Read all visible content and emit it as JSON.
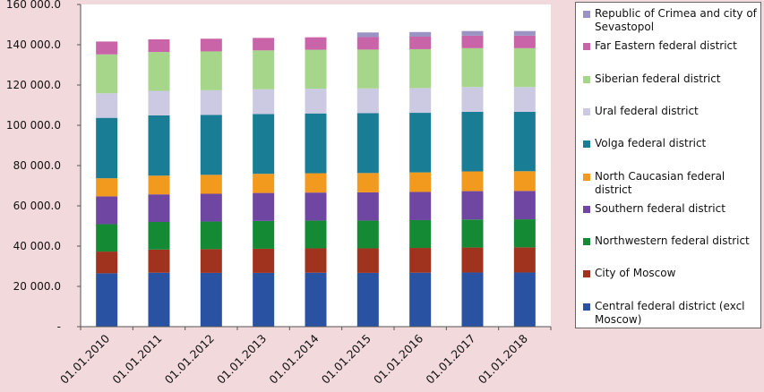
{
  "chart_data": {
    "type": "bar",
    "stacked": true,
    "title": "",
    "xlabel": "",
    "ylabel": "",
    "ylim": [
      0,
      160000
    ],
    "yticks": [
      "-",
      "20 000.0",
      "40 000.0",
      "60 000.0",
      "80 000.0",
      "100 000.0",
      "120 000.0",
      "140 000.0",
      "160 000.0"
    ],
    "grid": false,
    "legend": "right",
    "categories": [
      "01.01.2010",
      "01.01.2011",
      "01.01.2012",
      "01.01.2013",
      "01.01.2014",
      "01.01.2015",
      "01.01.2016",
      "01.01.2017",
      "01.01.2018"
    ],
    "series": [
      {
        "name": "Central federal district (excl Moscow)",
        "color": "#2952a3",
        "values": [
          26500,
          26800,
          26700,
          26700,
          26800,
          26700,
          26800,
          26900,
          26900
        ]
      },
      {
        "name": "City of Moscow",
        "color": "#a0331e",
        "values": [
          10800,
          11500,
          11800,
          12000,
          12100,
          12200,
          12300,
          12400,
          12500
        ]
      },
      {
        "name": "Northwestern federal district",
        "color": "#158a34",
        "values": [
          13600,
          13700,
          13700,
          13800,
          13800,
          13800,
          13800,
          13900,
          13900
        ]
      },
      {
        "name": "Southern federal district",
        "color": "#7046a3",
        "values": [
          13800,
          13700,
          13800,
          13900,
          13900,
          14000,
          14000,
          14100,
          14100
        ]
      },
      {
        "name": "North Caucasian federal district",
        "color": "#f29a1e",
        "values": [
          9000,
          9300,
          9400,
          9500,
          9600,
          9600,
          9700,
          9800,
          9800
        ]
      },
      {
        "name": "Volga federal district",
        "color": "#1a7d96",
        "values": [
          30000,
          29900,
          29800,
          29700,
          29700,
          29700,
          29600,
          29600,
          29500
        ]
      },
      {
        "name": "Ural federal district",
        "color": "#ccc9e3",
        "values": [
          12200,
          12200,
          12200,
          12300,
          12300,
          12300,
          12300,
          12300,
          12300
        ]
      },
      {
        "name": "Siberian federal district",
        "color": "#a6d68a",
        "values": [
          19300,
          19300,
          19300,
          19300,
          19300,
          19300,
          19300,
          19300,
          19300
        ]
      },
      {
        "name": "Far Eastern federal district",
        "color": "#c964a8",
        "values": [
          6400,
          6300,
          6300,
          6200,
          6200,
          6200,
          6200,
          6200,
          6200
        ]
      },
      {
        "name": "Republic of Crimea and city of Sevastopol",
        "color": "#9a93c4",
        "values": [
          0,
          0,
          0,
          0,
          0,
          2300,
          2300,
          2300,
          2300
        ]
      }
    ]
  }
}
